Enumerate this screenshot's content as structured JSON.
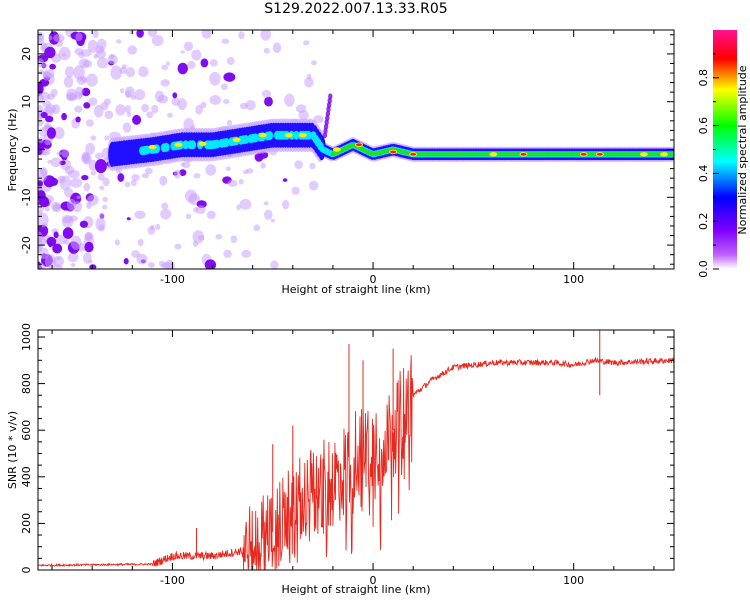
{
  "title": "S129.2022.007.13.33.R05",
  "chart_data": [
    {
      "type": "heatmap",
      "xlabel": "Height of straight line (km)",
      "ylabel": "Frequency (Hz)",
      "xlim": [
        -167,
        150
      ],
      "ylim": [
        -25,
        25
      ],
      "xticks": [
        -100,
        0,
        100
      ],
      "yticks": [
        -20,
        -10,
        0,
        10,
        20
      ],
      "colorbar": {
        "label": "Normalized spectral amplitude",
        "range": [
          0,
          1
        ],
        "ticks": [
          "0.0",
          "0.2",
          "0.4",
          "0.6",
          "0.8"
        ],
        "colormap": [
          "#ffffff",
          "#8000ff",
          "#0000ff",
          "#00ffff",
          "#00ff00",
          "#ffff00",
          "#ff0000",
          "#ff00ff"
        ]
      },
      "ridge": {
        "x": [
          -130,
          -110,
          -95,
          -80,
          -65,
          -50,
          -40,
          -30,
          -25,
          -20,
          -10,
          0,
          10,
          20,
          40,
          60,
          80,
          100,
          120,
          150
        ],
        "y": [
          -1,
          0,
          1,
          1,
          2,
          3,
          3,
          3,
          0,
          -1,
          1,
          -1,
          0,
          -1,
          -1,
          -1,
          -1,
          -1,
          -1,
          -1
        ]
      }
    },
    {
      "type": "line",
      "xlabel": "Height of straight line (km)",
      "ylabel": "SNR (10 * v/v)",
      "xlim": [
        -167,
        150
      ],
      "ylim": [
        0,
        1030
      ],
      "xticks": [
        -100,
        0,
        100
      ],
      "yticks": [
        0,
        200,
        400,
        600,
        800,
        1000
      ],
      "color": "#e8281e",
      "envelope": {
        "x": [
          -167,
          -110,
          -100,
          -80,
          -60,
          -45,
          -35,
          -25,
          -15,
          -10,
          0,
          10,
          20,
          30,
          40,
          60,
          90,
          100,
          110,
          120,
          150
        ],
        "y": [
          20,
          25,
          60,
          60,
          90,
          200,
          300,
          350,
          420,
          500,
          550,
          600,
          750,
          820,
          870,
          890,
          890,
          880,
          900,
          890,
          900
        ]
      },
      "spikes": [
        {
          "x": -12,
          "y": 970
        },
        {
          "x": -5,
          "y": 900
        },
        {
          "x": 10,
          "y": 950
        },
        {
          "x": -50,
          "y": 540
        },
        {
          "x": -40,
          "y": 620
        },
        {
          "x": -88,
          "y": 180
        },
        {
          "x": 113,
          "y": 1030
        },
        {
          "x": 113,
          "y": 750
        }
      ]
    }
  ]
}
